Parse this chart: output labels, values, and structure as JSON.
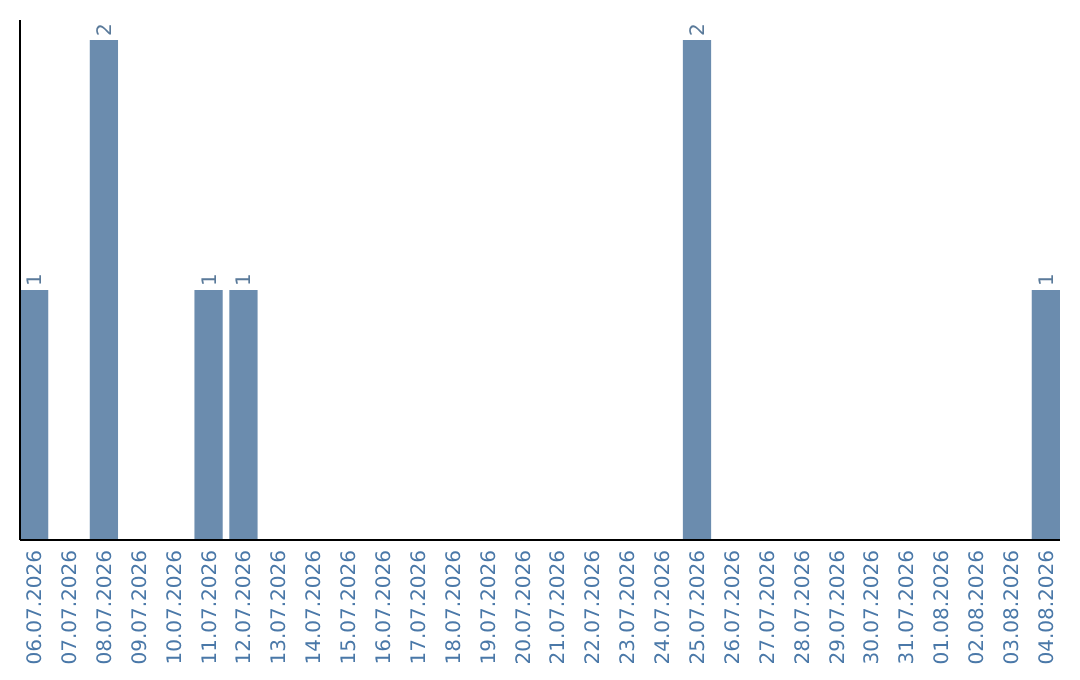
{
  "chart_data": {
    "type": "bar",
    "categories": [
      "06.07.2026",
      "07.07.2026",
      "08.07.2026",
      "09.07.2026",
      "10.07.2026",
      "11.07.2026",
      "12.07.2026",
      "13.07.2026",
      "14.07.2026",
      "15.07.2026",
      "16.07.2026",
      "17.07.2026",
      "18.07.2026",
      "19.07.2026",
      "20.07.2026",
      "21.07.2026",
      "22.07.2026",
      "23.07.2026",
      "24.07.2026",
      "25.07.2026",
      "26.07.2026",
      "27.07.2026",
      "28.07.2026",
      "29.07.2026",
      "30.07.2026",
      "31.07.2026",
      "01.08.2026",
      "02.08.2026",
      "03.08.2026",
      "04.08.2026"
    ],
    "values": [
      1,
      0,
      2,
      0,
      0,
      1,
      1,
      0,
      0,
      0,
      0,
      0,
      0,
      0,
      0,
      0,
      0,
      0,
      0,
      2,
      0,
      0,
      0,
      0,
      0,
      0,
      0,
      0,
      0,
      1
    ],
    "value_labels": [
      "1",
      null,
      "2",
      null,
      null,
      "1",
      "1",
      null,
      null,
      null,
      null,
      null,
      null,
      null,
      null,
      null,
      null,
      null,
      null,
      "2",
      null,
      null,
      null,
      null,
      null,
      null,
      null,
      null,
      null,
      "1"
    ],
    "color": "#6b8cae",
    "ylim": [
      0,
      2.08
    ],
    "tick_labels": "x"
  }
}
